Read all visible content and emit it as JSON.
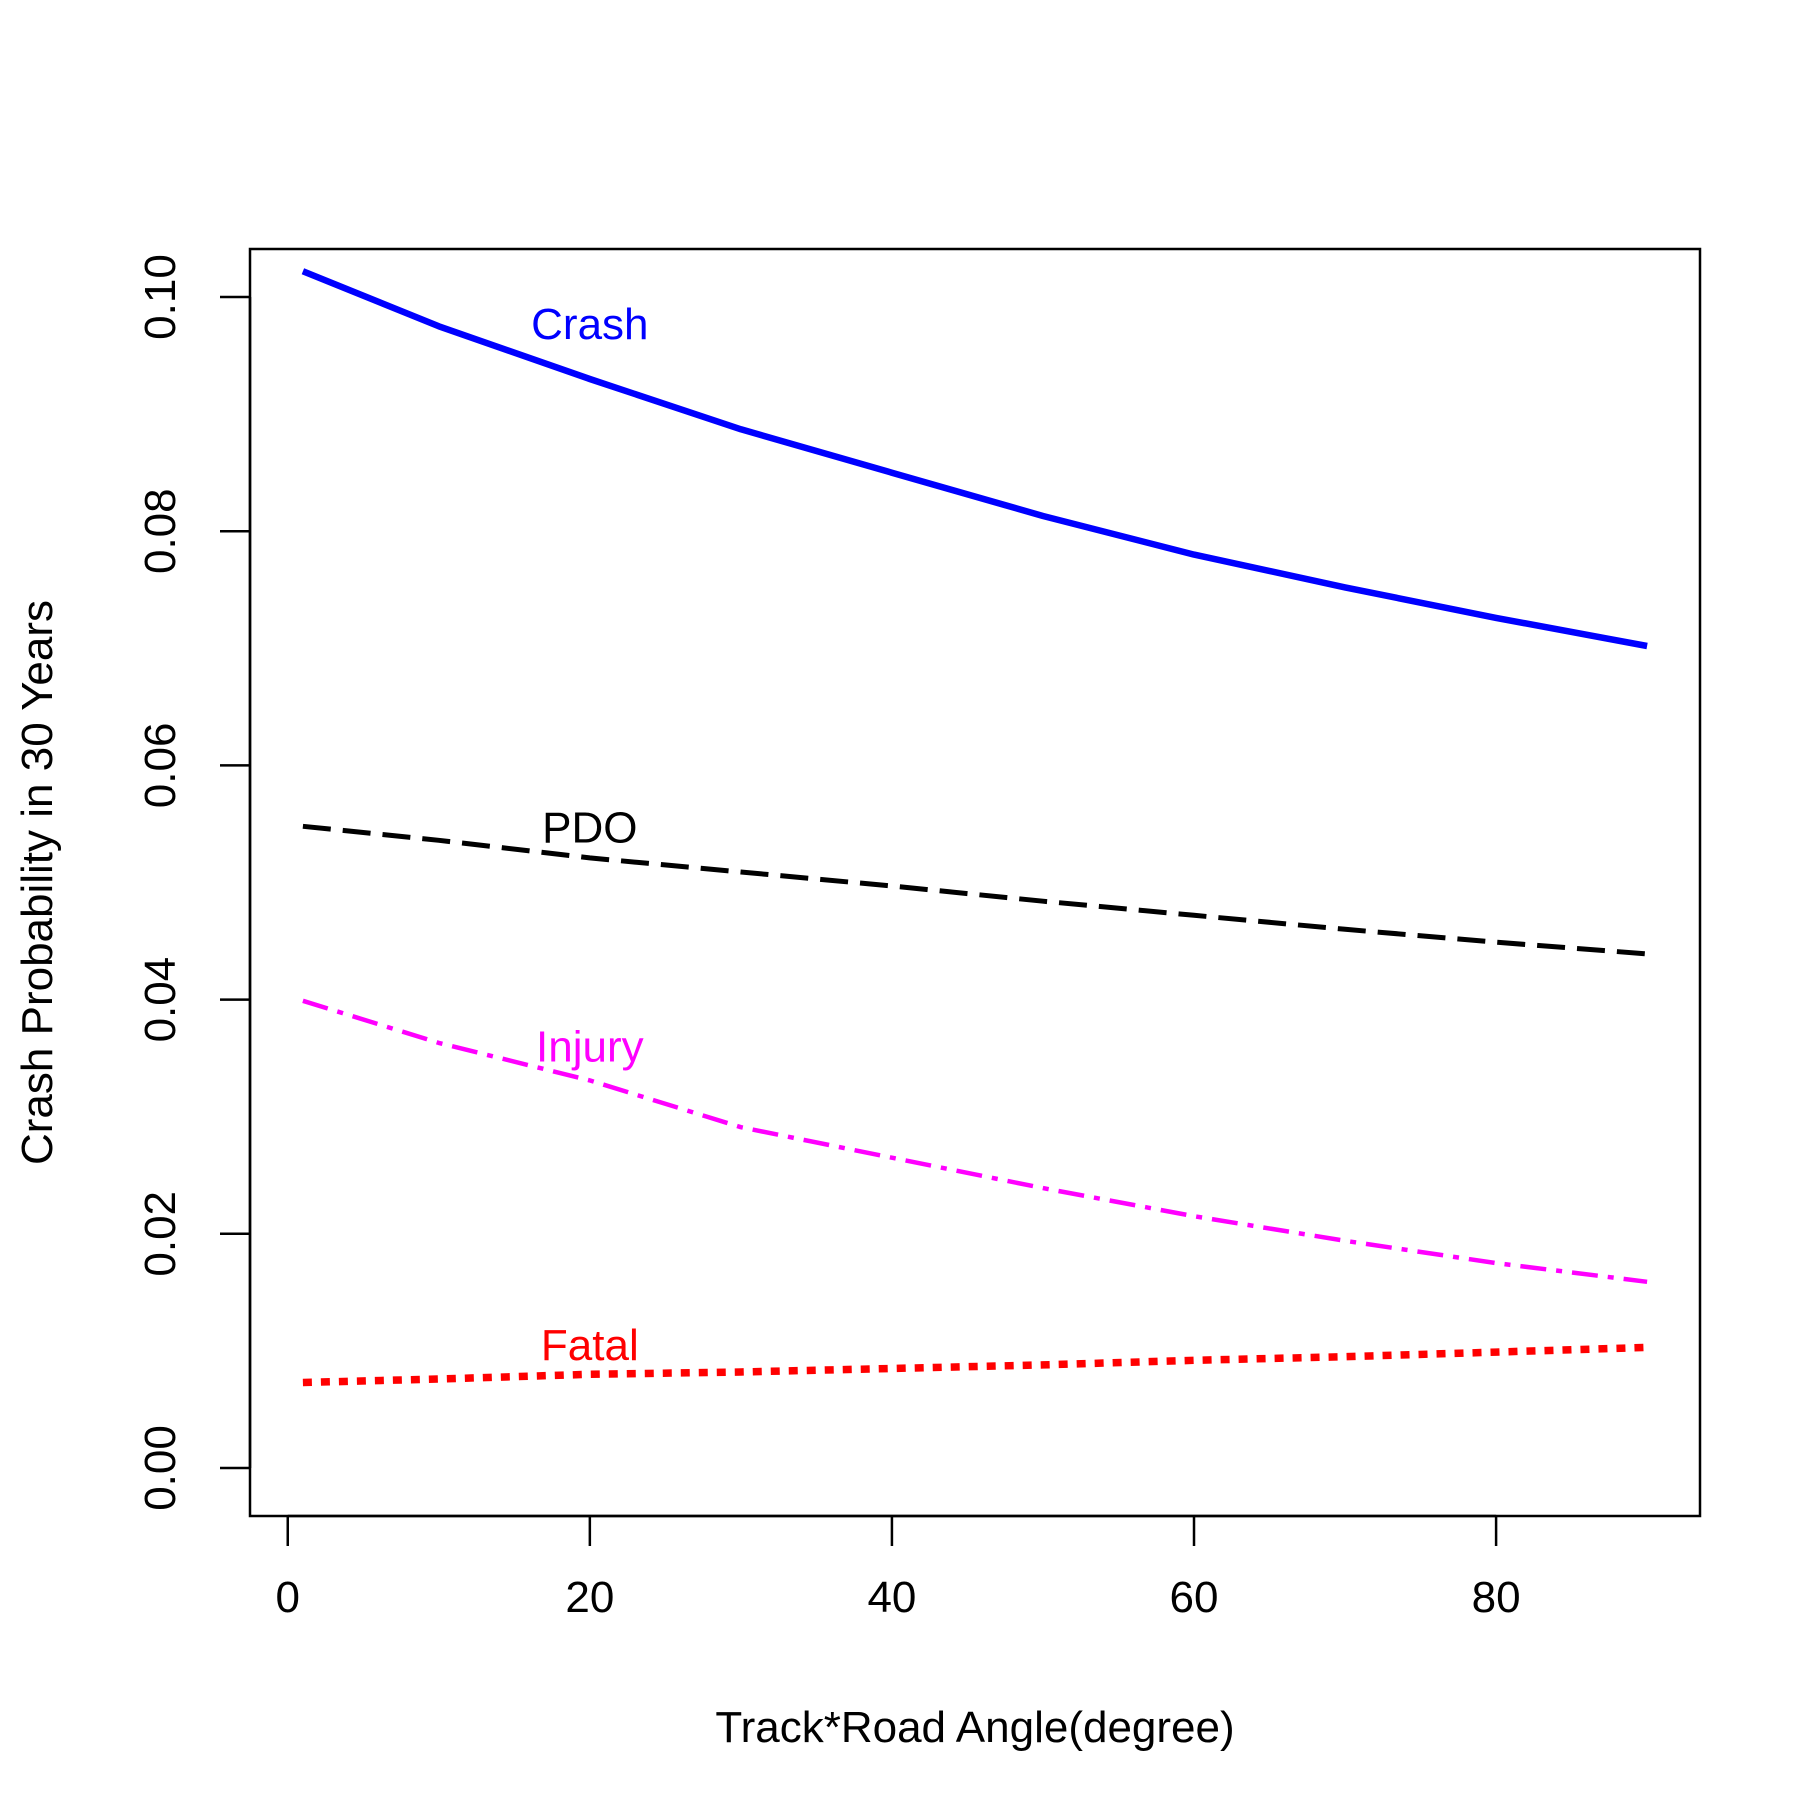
{
  "chart_data": {
    "type": "line",
    "title": "",
    "xlabel": "Track*Road Angle(degree)",
    "ylabel": "Crash Probability in 30 Years",
    "xlim": [
      -2.5,
      93.5
    ],
    "ylim": [
      -0.0041,
      0.1041
    ],
    "xticks": [
      0,
      20,
      40,
      60,
      80
    ],
    "xtick_labels": [
      "0",
      "20",
      "40",
      "60",
      "80"
    ],
    "yticks": [
      0,
      0.02,
      0.04,
      0.06,
      0.08,
      0.1
    ],
    "ytick_labels": [
      "0.00",
      "0.02",
      "0.04",
      "0.06",
      "0.08",
      "0.10"
    ],
    "grid": false,
    "legend": "none",
    "x": [
      1,
      10,
      20,
      30,
      40,
      50,
      60,
      70,
      80,
      90
    ],
    "series": [
      {
        "name": "Crash",
        "color": "#0000ff",
        "line_style": "solid",
        "values": [
          0.1022,
          0.0975,
          0.093,
          0.0887,
          0.085,
          0.0813,
          0.078,
          0.0752,
          0.0726,
          0.0702
        ]
      },
      {
        "name": "PDO",
        "color": "#000000",
        "line_style": "dashed",
        "values": [
          0.0548,
          0.0536,
          0.0521,
          0.0509,
          0.0497,
          0.0484,
          0.0472,
          0.046,
          0.0449,
          0.0439
        ]
      },
      {
        "name": "Injury",
        "color": "#ff00ff",
        "line_style": "dashdot",
        "values": [
          0.0399,
          0.0363,
          0.0331,
          0.0291,
          0.0265,
          0.0239,
          0.0215,
          0.0194,
          0.0175,
          0.0159
        ]
      },
      {
        "name": "Fatal",
        "color": "#ff0000",
        "line_style": "dotted",
        "values": [
          0.0073,
          0.0076,
          0.008,
          0.0082,
          0.0085,
          0.0088,
          0.0092,
          0.0095,
          0.0099,
          0.0103
        ]
      }
    ],
    "annotations": [
      {
        "text": "Crash",
        "x": 20,
        "y": 0.0977,
        "color": "#0000ff"
      },
      {
        "text": "PDO",
        "x": 20,
        "y": 0.0547,
        "color": "#000000"
      },
      {
        "text": "Injury",
        "x": 20,
        "y": 0.036,
        "color": "#ff00ff"
      },
      {
        "text": "Fatal",
        "x": 20,
        "y": 0.0105,
        "color": "#ff0000"
      }
    ]
  }
}
